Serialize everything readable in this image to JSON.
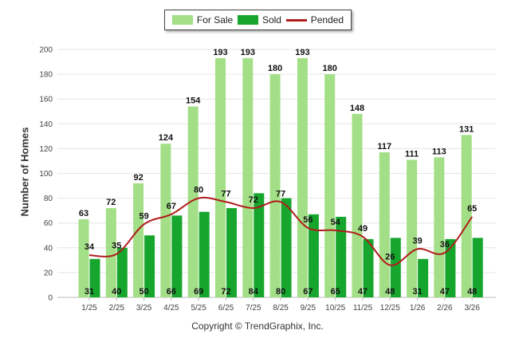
{
  "legend": {
    "for_sale": "For Sale",
    "sold": "Sold",
    "pended": "Pended"
  },
  "copyright": "Copyright © TrendGraphix, Inc.",
  "colors": {
    "for_sale": "#a3df86",
    "sold": "#17a62d",
    "pended": "#b01c1c",
    "grid": "#e6e6e6"
  },
  "chart_data": {
    "type": "bar",
    "title": "",
    "xlabel": "",
    "ylabel": "Number of Homes",
    "ylim": [
      0,
      200
    ],
    "yticks": [
      0,
      20,
      40,
      60,
      80,
      100,
      120,
      140,
      160,
      180,
      200
    ],
    "grid": true,
    "legend_position": "top-center",
    "categories": [
      "1/25",
      "2/25",
      "3/25",
      "4/25",
      "5/25",
      "6/25",
      "7/25",
      "8/25",
      "9/25",
      "10/25",
      "11/25",
      "12/25",
      "1/26",
      "2/26",
      "3/26"
    ],
    "series": [
      {
        "name": "For Sale",
        "type": "bar",
        "values": [
          63,
          72,
          92,
          124,
          154,
          193,
          193,
          180,
          193,
          180,
          148,
          117,
          111,
          113,
          131
        ]
      },
      {
        "name": "Sold",
        "type": "bar",
        "values": [
          31,
          40,
          50,
          66,
          69,
          72,
          84,
          80,
          67,
          65,
          47,
          48,
          31,
          47,
          48
        ]
      },
      {
        "name": "Pended",
        "type": "line",
        "values": [
          34,
          35,
          59,
          67,
          80,
          77,
          72,
          77,
          56,
          54,
          49,
          26,
          39,
          36,
          65
        ]
      }
    ]
  }
}
